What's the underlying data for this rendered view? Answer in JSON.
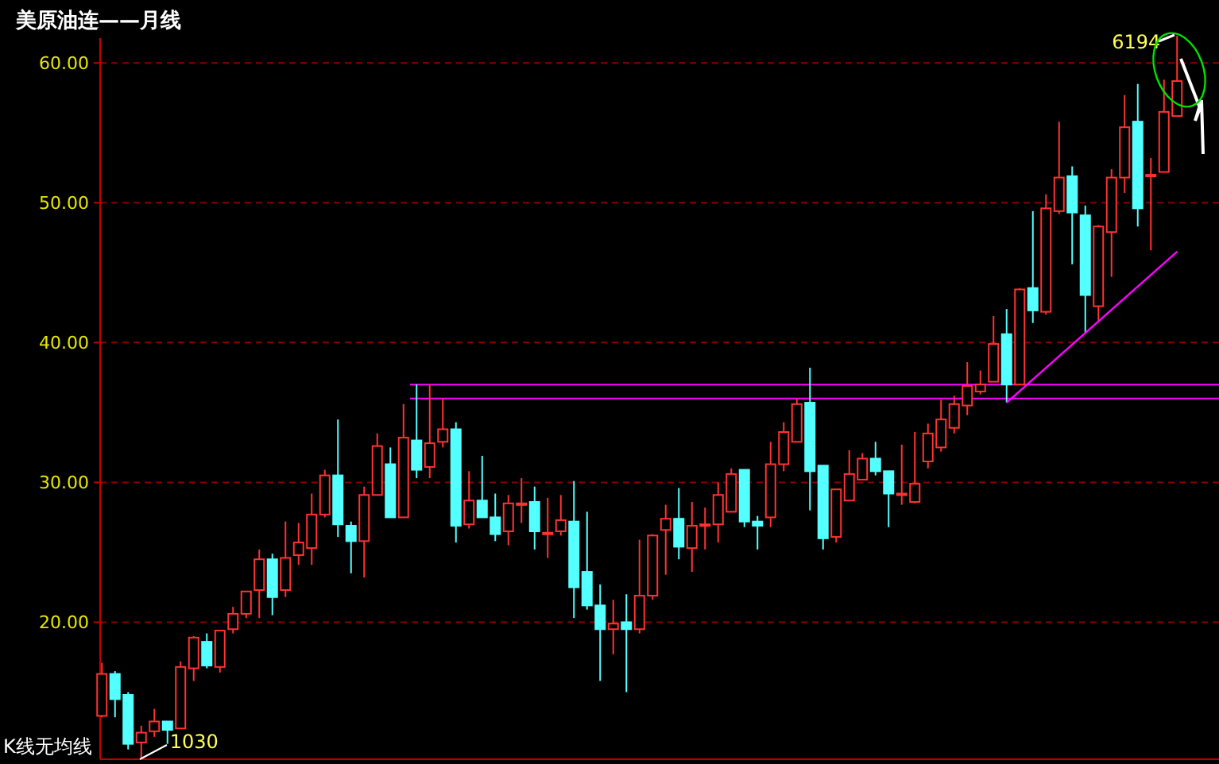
{
  "chart_data": {
    "type": "candlestick",
    "title": "美原油连——月线",
    "annotations": [
      "K线无均线",
      "1030",
      "6194"
    ],
    "categories": [
      null,
      null,
      null,
      null,
      null,
      null,
      null,
      null,
      null,
      null,
      null,
      null,
      null,
      null,
      null,
      null,
      null,
      null,
      null,
      null,
      null,
      null,
      null,
      null,
      null,
      null,
      null,
      null,
      null,
      null,
      null,
      null,
      null,
      null,
      null,
      null,
      null,
      null,
      null,
      null,
      null,
      null,
      null,
      null,
      null,
      null,
      null,
      null,
      null,
      null,
      null,
      null,
      null,
      null,
      null,
      null,
      null,
      null,
      null,
      null,
      null,
      null,
      null,
      null,
      null,
      null,
      null,
      null,
      null,
      null,
      null,
      null,
      null,
      null,
      null,
      null,
      null,
      null,
      null,
      null,
      null,
      null,
      null
    ],
    "ylim": [
      10.2,
      64.5
    ],
    "yticks": [
      {
        "value": 20,
        "label": "20.00"
      },
      {
        "value": 30,
        "label": "30.00"
      },
      {
        "value": 40,
        "label": "40.00"
      },
      {
        "value": 50,
        "label": "50.00"
      },
      {
        "value": 60,
        "label": "60.00"
      }
    ],
    "grid": "y",
    "tick_labels": "y",
    "ref_lines": [
      {
        "axis": "y",
        "value": 37.0,
        "color": "#ff00ff"
      },
      {
        "axis": "y",
        "value": 36.0,
        "color": "#ff00ff"
      }
    ],
    "series": [
      {
        "ohlc": [
          [
            13.3,
            17.1,
            13.2,
            16.3
          ],
          [
            16.3,
            16.5,
            13.2,
            14.5
          ],
          [
            14.8,
            15.0,
            10.9,
            11.3
          ],
          [
            11.4,
            12.6,
            10.3,
            12.1
          ],
          [
            12.2,
            13.8,
            11.8,
            12.9
          ],
          [
            12.9,
            12.9,
            11.3,
            12.3
          ],
          [
            12.4,
            17.2,
            12.4,
            16.8
          ],
          [
            16.7,
            19.0,
            15.8,
            18.9
          ],
          [
            18.6,
            19.2,
            16.7,
            16.9
          ],
          [
            16.8,
            19.4,
            16.4,
            19.4
          ],
          [
            19.5,
            21.1,
            19.2,
            20.6
          ],
          [
            20.6,
            22.2,
            20.3,
            22.2
          ],
          [
            22.3,
            25.2,
            20.3,
            24.5
          ],
          [
            24.5,
            24.9,
            20.5,
            21.8
          ],
          [
            22.3,
            27.2,
            21.8,
            24.6
          ],
          [
            24.8,
            27.1,
            24.1,
            25.7
          ],
          [
            25.3,
            29.2,
            24.1,
            27.7
          ],
          [
            27.7,
            30.9,
            27.5,
            30.5
          ],
          [
            30.5,
            34.5,
            26.1,
            27.0
          ],
          [
            26.9,
            27.2,
            23.5,
            25.8
          ],
          [
            25.8,
            29.7,
            23.2,
            29.1
          ],
          [
            29.1,
            33.5,
            29.1,
            32.6
          ],
          [
            31.3,
            32.5,
            27.5,
            27.5
          ],
          [
            27.5,
            35.6,
            27.5,
            33.2
          ],
          [
            33.0,
            37.0,
            30.3,
            30.9
          ],
          [
            31.1,
            37.0,
            30.3,
            32.8
          ],
          [
            32.9,
            36.0,
            32.5,
            33.8
          ],
          [
            33.8,
            34.3,
            25.7,
            26.9
          ],
          [
            27.0,
            30.8,
            26.7,
            28.7
          ],
          [
            28.7,
            31.9,
            27.5,
            27.5
          ],
          [
            27.5,
            29.2,
            25.8,
            26.3
          ],
          [
            26.5,
            29.1,
            25.5,
            28.5
          ],
          [
            28.4,
            30.3,
            27.1,
            28.5
          ],
          [
            28.6,
            29.7,
            25.2,
            26.5
          ],
          [
            26.3,
            28.9,
            24.6,
            26.4
          ],
          [
            26.5,
            29.1,
            26.2,
            27.3
          ],
          [
            27.2,
            30.1,
            20.3,
            22.5
          ],
          [
            23.6,
            27.9,
            20.9,
            21.2
          ],
          [
            21.2,
            22.7,
            15.8,
            19.5
          ],
          [
            19.5,
            21.6,
            17.7,
            19.9
          ],
          [
            20.0,
            22.0,
            15.0,
            19.5
          ],
          [
            19.5,
            25.9,
            19.2,
            21.9
          ],
          [
            21.9,
            26.3,
            21.6,
            26.2
          ],
          [
            26.6,
            28.4,
            23.4,
            27.4
          ],
          [
            27.4,
            29.6,
            24.5,
            25.4
          ],
          [
            25.3,
            28.6,
            23.6,
            26.9
          ],
          [
            26.9,
            28.2,
            25.2,
            27.0
          ],
          [
            27.0,
            30.0,
            25.7,
            29.1
          ],
          [
            27.9,
            31.0,
            27.9,
            30.6
          ],
          [
            30.9,
            30.9,
            26.8,
            27.2
          ],
          [
            27.2,
            27.6,
            25.2,
            26.9
          ],
          [
            27.5,
            32.9,
            26.8,
            31.3
          ],
          [
            31.3,
            34.3,
            30.8,
            33.6
          ],
          [
            32.9,
            36.0,
            32.9,
            35.6
          ],
          [
            35.7,
            38.2,
            28.0,
            30.8
          ],
          [
            31.2,
            31.2,
            25.2,
            26.0
          ],
          [
            26.1,
            29.5,
            25.7,
            29.5
          ],
          [
            28.7,
            32.3,
            28.7,
            30.6
          ],
          [
            30.2,
            32.1,
            30.2,
            31.7
          ],
          [
            31.7,
            32.9,
            30.5,
            30.8
          ],
          [
            30.8,
            30.8,
            26.8,
            29.2
          ],
          [
            29.1,
            32.7,
            28.4,
            29.2
          ],
          [
            28.6,
            33.6,
            28.5,
            29.9
          ],
          [
            31.5,
            34.2,
            31.0,
            33.5
          ],
          [
            32.5,
            35.9,
            32.2,
            34.5
          ],
          [
            33.9,
            36.2,
            33.5,
            35.6
          ],
          [
            35.5,
            38.6,
            34.8,
            36.9
          ],
          [
            36.5,
            38.0,
            36.3,
            37.0
          ],
          [
            37.2,
            41.9,
            37.2,
            39.9
          ],
          [
            40.6,
            42.4,
            35.7,
            37.0
          ],
          [
            37.0,
            43.9,
            37.0,
            43.8
          ],
          [
            43.9,
            49.4,
            41.4,
            42.3
          ],
          [
            42.2,
            50.6,
            42.0,
            49.6
          ],
          [
            49.4,
            55.8,
            49.2,
            51.8
          ],
          [
            51.9,
            52.6,
            45.6,
            49.3
          ],
          [
            49.1,
            49.8,
            40.7,
            43.4
          ],
          [
            42.6,
            48.4,
            41.5,
            48.3
          ],
          [
            47.9,
            52.4,
            44.7,
            51.8
          ],
          [
            51.8,
            57.7,
            50.7,
            55.4
          ],
          [
            55.8,
            58.5,
            48.3,
            49.6
          ],
          [
            51.9,
            53.2,
            46.6,
            52.0
          ],
          [
            52.2,
            58.8,
            52.2,
            56.5
          ],
          [
            56.2,
            61.94,
            56.2,
            58.7
          ]
        ],
        "colors": [
          "#ff3232",
          "#54ffff",
          "#54ffff",
          "#ff3232",
          "#ff3232",
          "#54ffff",
          "#ff3232",
          "#ff3232",
          "#54ffff",
          "#ff3232",
          "#ff3232",
          "#ff3232",
          "#ff3232",
          "#54ffff",
          "#ff3232",
          "#ff3232",
          "#ff3232",
          "#ff3232",
          "#54ffff",
          "#54ffff",
          "#ff3232",
          "#ff3232",
          "#54ffff",
          "#ff3232",
          "#54ffff",
          "#ff3232",
          "#ff3232",
          "#54ffff",
          "#ff3232",
          "#54ffff",
          "#54ffff",
          "#ff3232",
          "#ff3232",
          "#54ffff",
          "#ff3232",
          "#ff3232",
          "#54ffff",
          "#54ffff",
          "#54ffff",
          "#ff3232",
          "#54ffff",
          "#ff3232",
          "#ff3232",
          "#ff3232",
          "#54ffff",
          "#ff3232",
          "#ff3232",
          "#ff3232",
          "#ff3232",
          "#54ffff",
          "#54ffff",
          "#ff3232",
          "#ff3232",
          "#ff3232",
          "#54ffff",
          "#54ffff",
          "#ff3232",
          "#ff3232",
          "#ff3232",
          "#54ffff",
          "#54ffff",
          "#ff3232",
          "#ff3232",
          "#ff3232",
          "#ff3232",
          "#ff3232",
          "#ff3232",
          "#ff3232",
          "#ff3232",
          "#54ffff",
          "#ff3232",
          "#54ffff",
          "#ff3232",
          "#ff3232",
          "#54ffff",
          "#54ffff",
          "#ff3232",
          "#ff3232",
          "#ff3232",
          "#54ffff",
          "#ff3232",
          "#ff3232",
          "#ff3232"
        ]
      },
      {
        "type": "line",
        "color": "#ff00ff",
        "values": [
          null,
          null,
          null,
          null,
          null,
          null,
          null,
          null,
          null,
          null,
          null,
          null,
          null,
          null,
          null,
          null,
          null,
          null,
          null,
          null,
          null,
          null,
          null,
          null,
          null,
          null,
          null,
          null,
          null,
          null,
          null,
          null,
          null,
          null,
          null,
          null,
          null,
          null,
          null,
          null,
          null,
          null,
          null,
          null,
          null,
          null,
          null,
          null,
          null,
          null,
          null,
          null,
          null,
          null,
          null,
          null,
          null,
          null,
          null,
          null,
          null,
          null,
          null,
          null,
          null,
          null,
          null,
          null,
          null,
          35.7,
          null,
          null,
          null,
          null,
          null,
          null,
          null,
          null,
          null,
          null,
          null,
          null,
          46.5
        ]
      }
    ]
  }
}
